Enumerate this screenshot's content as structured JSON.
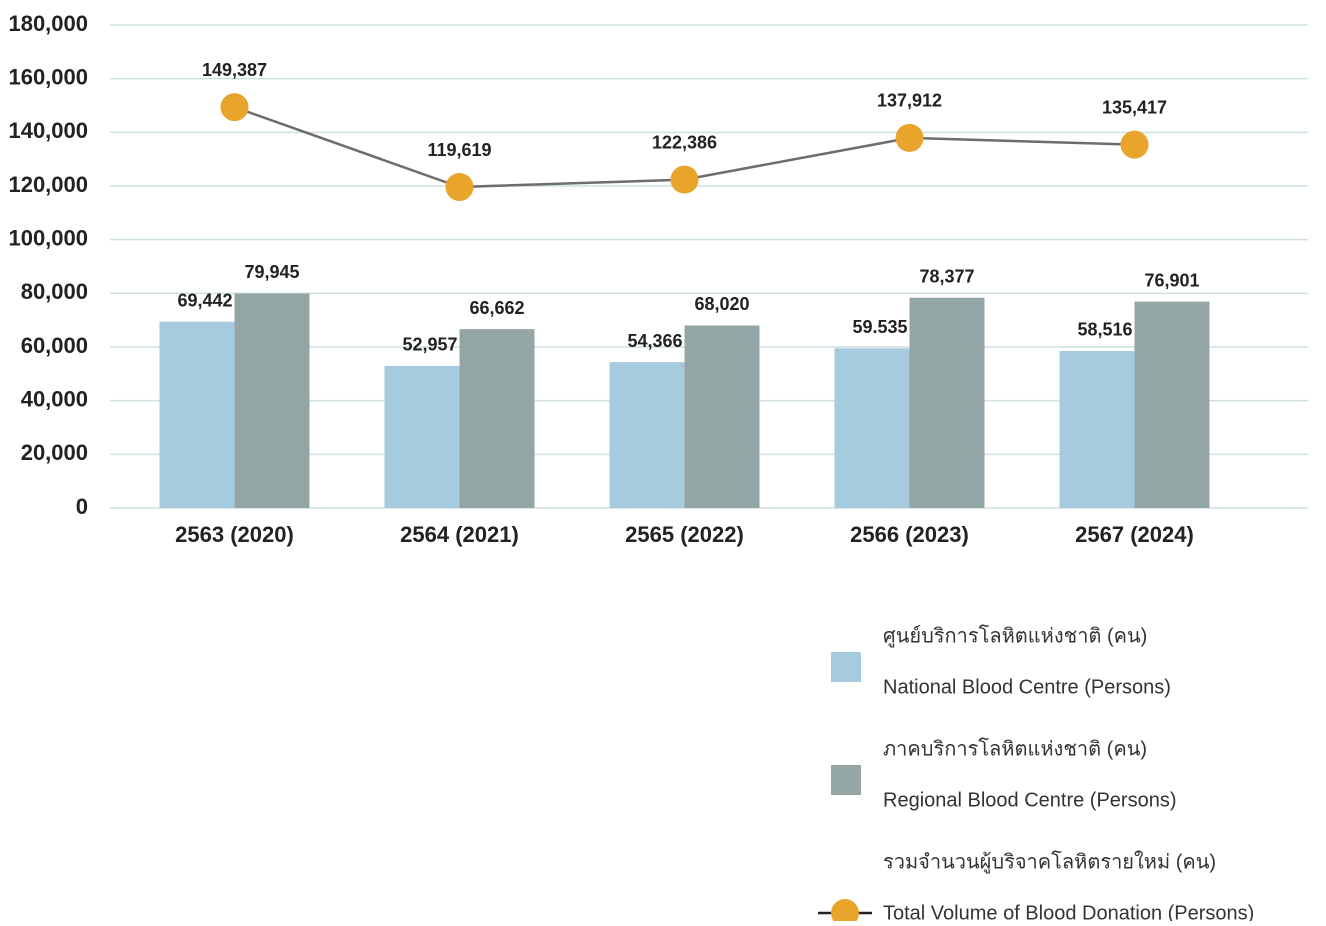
{
  "chart_data": {
    "type": "bar",
    "categories": [
      "2563 (2020)",
      "2564 (2021)",
      "2565 (2022)",
      "2566 (2023)",
      "2567 (2024)"
    ],
    "series": [
      {
        "name": [
          "ศูนย์บริการโลหิตแห่งชาติ (คน)",
          "National Blood Centre (Persons)"
        ],
        "type": "bar",
        "color": "#a6cbdf",
        "values": [
          69442,
          52957,
          54366,
          59535,
          58516
        ],
        "value_labels": [
          "69,442",
          "52,957",
          "54,366",
          "59.535",
          "58,516"
        ]
      },
      {
        "name": [
          "ภาคบริการโลหิตแห่งชาติ (คน)",
          "Regional Blood Centre (Persons)"
        ],
        "type": "bar",
        "color": "#94a5a5",
        "values": [
          79945,
          66662,
          68020,
          78377,
          76901
        ],
        "value_labels": [
          "79,945",
          "66,662",
          "68,020",
          "78,377",
          "76,901"
        ]
      },
      {
        "name": [
          "รวมจำนวนผู้บริจาคโลหิตรายใหม่ (คน)",
          "Total Volume of Blood Donation (Persons)"
        ],
        "type": "line",
        "color": "#e8a42b",
        "line_color": "#6d6d6d",
        "values": [
          149387,
          119619,
          122386,
          137912,
          135417
        ],
        "value_labels": [
          "149,387",
          "119,619",
          "122,386",
          "137,912",
          "135,417"
        ]
      }
    ],
    "ylim": [
      0,
      180000
    ],
    "yticks": [
      0,
      {
        "value": 20000,
        "label": "20,000"
      },
      {
        "value": 40000,
        "label": "40,000"
      },
      {
        "value": 60000,
        "label": "60,000"
      },
      {
        "value": 80000,
        "label": "80,000"
      },
      {
        "value": 100000,
        "label": "100,000"
      },
      {
        "value": 120000,
        "label": "120,000"
      },
      {
        "value": 140000,
        "label": "140,000"
      },
      {
        "value": 160000,
        "label": "160,000"
      },
      {
        "value": 180000,
        "label": "180,000"
      }
    ],
    "grid": true,
    "legend": "lower right"
  }
}
